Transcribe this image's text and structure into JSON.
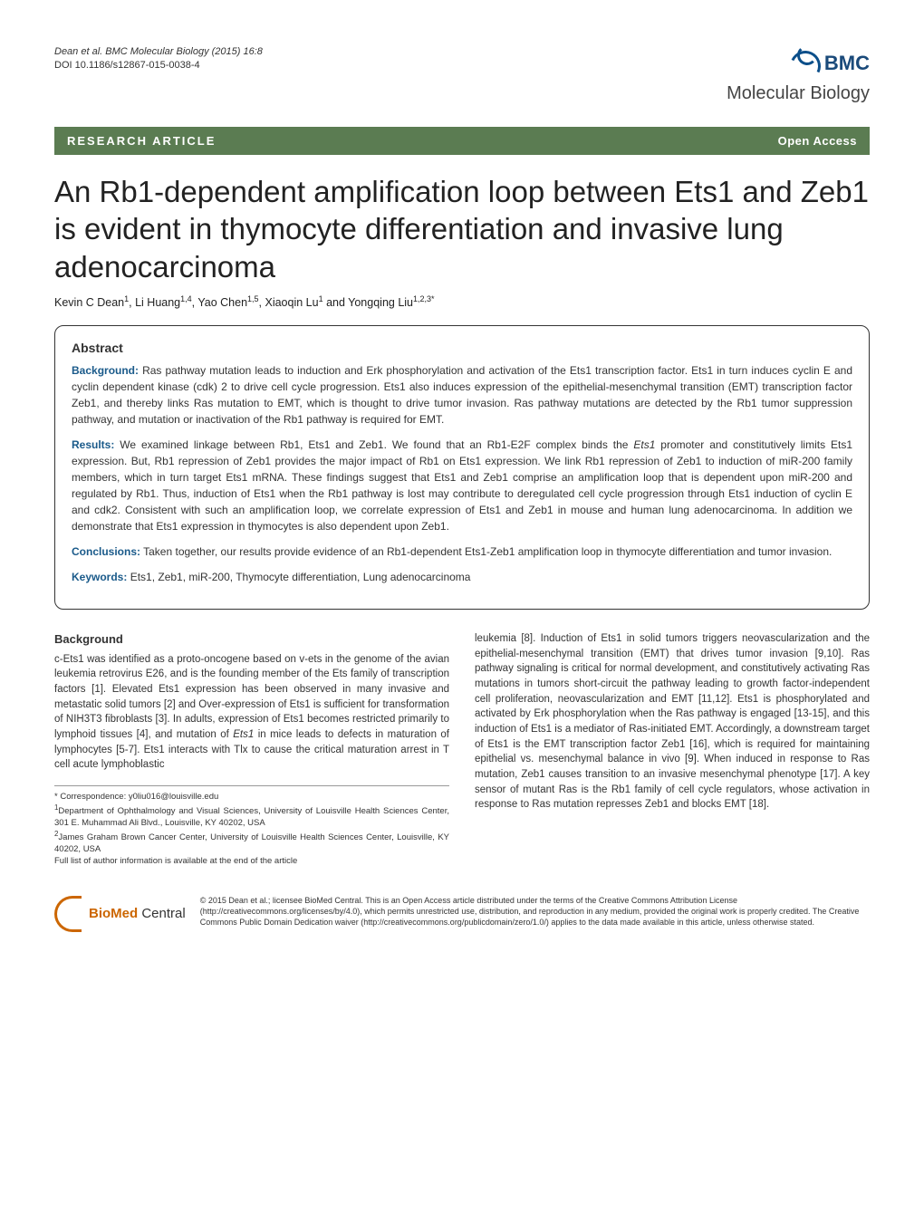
{
  "header": {
    "citation": "Dean et al. BMC Molecular Biology (2015) 16:8",
    "doi": "DOI 10.1186/s12867-015-0038-4",
    "brand_prefix": "BMC",
    "journal_name": "Molecular Biology"
  },
  "banner": {
    "left": "RESEARCH ARTICLE",
    "right": "Open Access"
  },
  "title": "An Rb1-dependent amplification loop between Ets1 and Zeb1 is evident in thymocyte differentiation and invasive lung adenocarcinoma",
  "authors_html": "Kevin C Dean<sup>1</sup>, Li Huang<sup>1,4</sup>, Yao Chen<sup>1,5</sup>, Xiaoqin Lu<sup>1</sup> and Yongqing Liu<sup>1,2,3*</sup>",
  "abstract": {
    "heading": "Abstract",
    "background_label": "Background:",
    "background_text": " Ras pathway mutation leads to induction and Erk phosphorylation and activation of the Ets1 transcription factor. Ets1 in turn induces cyclin E and cyclin dependent kinase (cdk) 2 to drive cell cycle progression. Ets1 also induces expression of the epithelial-mesenchymal transition (EMT) transcription factor Zeb1, and thereby links Ras mutation to EMT, which is thought to drive tumor invasion. Ras pathway mutations are detected by the Rb1 tumor suppression pathway, and mutation or inactivation of the Rb1 pathway is required for EMT.",
    "results_label": "Results:",
    "results_text": " We examined linkage between Rb1, Ets1 and Zeb1. We found that an Rb1-E2F complex binds the Ets1 promoter and constitutively limits Ets1 expression. But, Rb1 repression of Zeb1 provides the major impact of Rb1 on Ets1 expression. We link Rb1 repression of Zeb1 to induction of miR-200 family members, which in turn target Ets1 mRNA. These findings suggest that Ets1 and Zeb1 comprise an amplification loop that is dependent upon miR-200 and regulated by Rb1. Thus, induction of Ets1 when the Rb1 pathway is lost may contribute to deregulated cell cycle progression through Ets1 induction of cyclin E and cdk2. Consistent with such an amplification loop, we correlate expression of Ets1 and Zeb1 in mouse and human lung adenocarcinoma. In addition we demonstrate that Ets1 expression in thymocytes is also dependent upon Zeb1.",
    "conclusions_label": "Conclusions:",
    "conclusions_text": " Taken together, our results provide evidence of an Rb1-dependent Ets1-Zeb1 amplification loop in thymocyte differentiation and tumor invasion.",
    "keywords_label": "Keywords:",
    "keywords_text": " Ets1, Zeb1, miR-200, Thymocyte differentiation, Lung adenocarcinoma"
  },
  "body": {
    "background_heading": "Background",
    "left_col": "c-Ets1 was identified as a proto-oncogene based on v-ets in the genome of the avian leukemia retrovirus E26, and is the founding member of the Ets family of transcription factors [1]. Elevated Ets1 expression has been observed in many invasive and metastatic solid tumors [2] and Over-expression of Ets1 is sufficient for transformation of NIH3T3 fibroblasts [3]. In adults, expression of Ets1 becomes restricted primarily to lymphoid tissues [4], and mutation of Ets1 in mice leads to defects in maturation of lymphocytes [5-7]. Ets1 interacts with Tlx to cause the critical maturation arrest in T cell acute lymphoblastic",
    "right_col": "leukemia [8]. Induction of Ets1 in solid tumors triggers neovascularization and the epithelial-mesenchymal transition (EMT) that drives tumor invasion [9,10]. Ras pathway signaling is critical for normal development, and constitutively activating Ras mutations in tumors short-circuit the pathway leading to growth factor-independent cell proliferation, neovascularization and EMT [11,12]. Ets1 is phosphorylated and activated by Erk phosphorylation when the Ras pathway is engaged [13-15], and this induction of Ets1 is a mediator of Ras-initiated EMT. Accordingly, a downstream target of Ets1 is the EMT transcription factor Zeb1 [16], which is required for maintaining epithelial vs. mesenchymal balance in vivo [9]. When induced in response to Ras mutation, Zeb1 causes transition to an invasive mesenchymal phenotype [17]. A key sensor of mutant Ras is the Rb1 family of cell cycle regulators, whose activation in response to Ras mutation represses Zeb1 and blocks EMT [18]."
  },
  "footnote": {
    "correspondence": "* Correspondence: y0liu016@louisville.edu",
    "affil1": "1Department of Ophthalmology and Visual Sciences, University of Louisville Health Sciences Center, 301 E. Muhammad Ali Blvd., Louisville, KY 40202, USA",
    "affil2": "2James Graham Brown Cancer Center, University of Louisville Health Sciences Center, Louisville, KY 40202, USA",
    "full_list": "Full list of author information is available at the end of the article"
  },
  "footer": {
    "logo_bold": "BioMed",
    "logo_reg": " Central",
    "license": "© 2015 Dean et al.; licensee BioMed Central. This is an Open Access article distributed under the terms of the Creative Commons Attribution License (http://creativecommons.org/licenses/by/4.0), which permits unrestricted use, distribution, and reproduction in any medium, provided the original work is properly credited. The Creative Commons Public Domain Dedication waiver (http://creativecommons.org/publicdomain/zero/1.0/) applies to the data made available in this article, unless otherwise stated."
  },
  "colors": {
    "banner_bg": "#5b7c52",
    "banner_fg": "#ffffff",
    "brand_blue": "#1a4a7a",
    "abstract_label": "#1a5a8a",
    "bmc_orange": "#cc6600"
  }
}
